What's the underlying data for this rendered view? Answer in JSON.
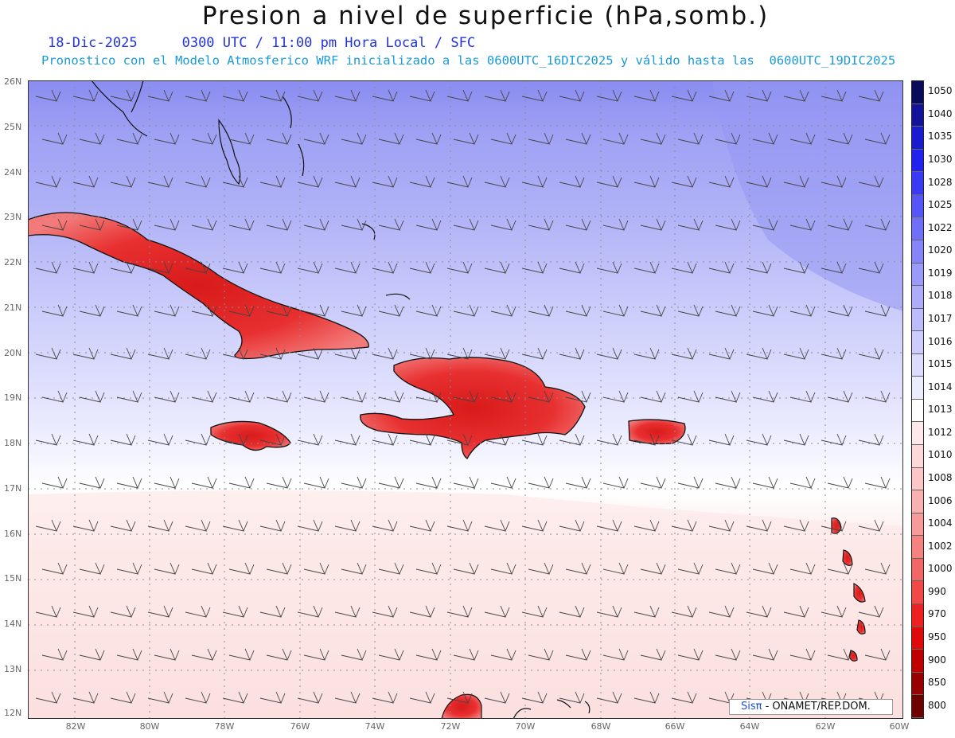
{
  "title": "Presion a nivel de superficie (hPa,somb.)",
  "date": "18-Dic-2025",
  "time_info": "0300 UTC / 11:00 pm Hora Local / SFC",
  "forecast_info": "Pronostico con el Modelo Atmosferico WRF inicializado a las 0600UTC_16DIC2025 y válido hasta las  0600UTC_19DIC2025",
  "lat_labels": [
    "26N",
    "25N",
    "24N",
    "23N",
    "22N",
    "21N",
    "20N",
    "19N",
    "18N",
    "17N",
    "16N",
    "15N",
    "14N",
    "13N",
    "12N"
  ],
  "lon_labels": [
    "82W",
    "80W",
    "78W",
    "76W",
    "74W",
    "72W",
    "70W",
    "68W",
    "66W",
    "64W",
    "62W",
    "60W"
  ],
  "colorbar": {
    "levels": [
      "1050",
      "1040",
      "1035",
      "1030",
      "1028",
      "1025",
      "1022",
      "1020",
      "1019",
      "1018",
      "1017",
      "1016",
      "1015",
      "1014",
      "1013",
      "1012",
      "1010",
      "1008",
      "1006",
      "1004",
      "1002",
      "1000",
      "990",
      "970",
      "950",
      "900",
      "850",
      "800"
    ],
    "colors": [
      "#0a0a5c",
      "#12129a",
      "#1a1ad0",
      "#2222ee",
      "#3a3af5",
      "#5656f8",
      "#6f6ff9",
      "#8585f9",
      "#9a9afa",
      "#acacfb",
      "#bcbcfc",
      "#cdcdfd",
      "#dcdcfe",
      "#ececff",
      "#ffffff",
      "#fde9e9",
      "#fcd8d8",
      "#fbc6c6",
      "#f9b0b0",
      "#f79a9a",
      "#f58181",
      "#f36666",
      "#f14848",
      "#ee2020",
      "#e00a0a",
      "#c00000",
      "#990000",
      "#6e0000"
    ]
  },
  "credit": {
    "sis": "Sisπ",
    "rest": " - ONAMET/REP.DOM."
  }
}
